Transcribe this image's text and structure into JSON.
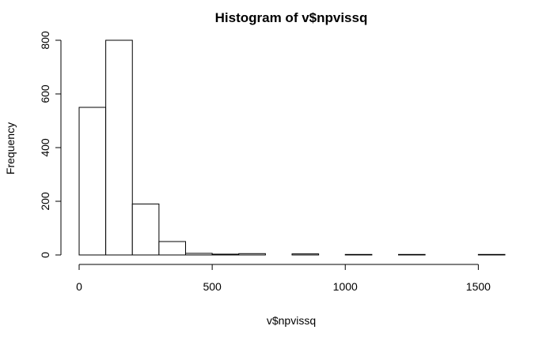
{
  "chart_data": {
    "type": "bar",
    "title": "Histogram of v$npvissq",
    "xlabel": "v$npvissq",
    "ylabel": "Frequency",
    "xlim": [
      0,
      1600
    ],
    "ylim": [
      0,
      800
    ],
    "x_ticks": [
      0,
      500,
      1000,
      1500
    ],
    "y_ticks": [
      0,
      200,
      400,
      600,
      800
    ],
    "bins": [
      {
        "start": 0,
        "end": 100,
        "value": 550
      },
      {
        "start": 100,
        "end": 200,
        "value": 800
      },
      {
        "start": 200,
        "end": 300,
        "value": 190
      },
      {
        "start": 300,
        "end": 400,
        "value": 50
      },
      {
        "start": 400,
        "end": 500,
        "value": 6
      },
      {
        "start": 500,
        "end": 600,
        "value": 3
      },
      {
        "start": 600,
        "end": 700,
        "value": 5
      },
      {
        "start": 700,
        "end": 800,
        "value": 0
      },
      {
        "start": 800,
        "end": 900,
        "value": 4
      },
      {
        "start": 900,
        "end": 1000,
        "value": 0
      },
      {
        "start": 1000,
        "end": 1100,
        "value": 2
      },
      {
        "start": 1100,
        "end": 1200,
        "value": 0
      },
      {
        "start": 1200,
        "end": 1300,
        "value": 2
      },
      {
        "start": 1300,
        "end": 1400,
        "value": 0
      },
      {
        "start": 1400,
        "end": 1500,
        "value": 0
      },
      {
        "start": 1500,
        "end": 1600,
        "value": 2
      }
    ],
    "grid": false
  }
}
